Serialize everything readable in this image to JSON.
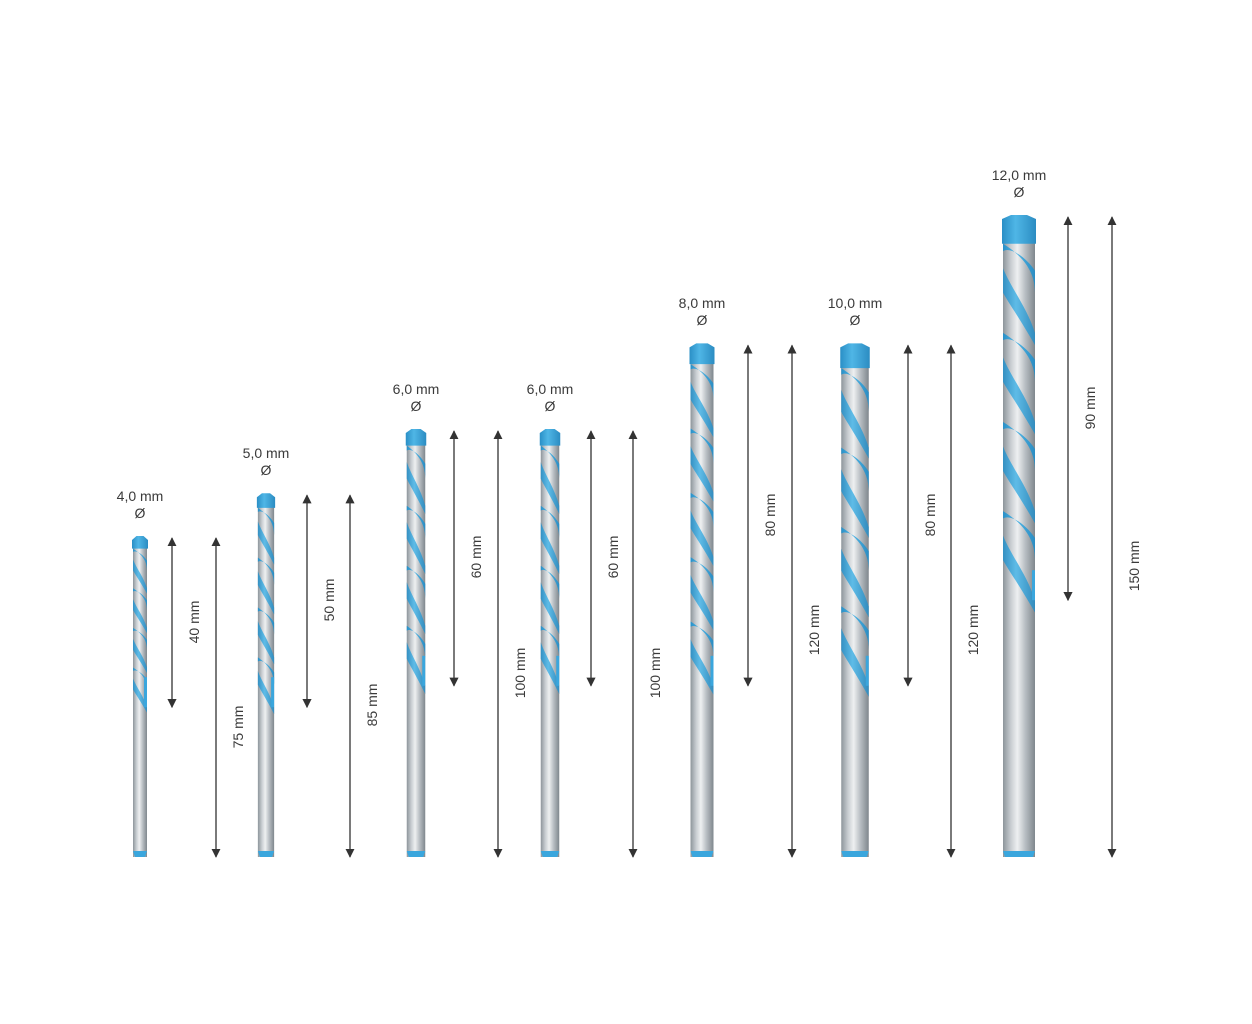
{
  "colors": {
    "flute_blue": "#3aa6dd",
    "shank_grey": "#c8cdd1",
    "arrow": "#333333",
    "background": "#ffffff"
  },
  "bits": [
    {
      "diameter_label": "4,0 mm",
      "diameter_symbol": "Ø",
      "working_length_label": "40 mm",
      "total_length_label": "75 mm",
      "diameter_mm": 4.0,
      "working_length_mm": 40,
      "total_length_mm": 75
    },
    {
      "diameter_label": "5,0 mm",
      "diameter_symbol": "Ø",
      "working_length_label": "50 mm",
      "total_length_label": "85 mm",
      "diameter_mm": 5.0,
      "working_length_mm": 50,
      "total_length_mm": 85
    },
    {
      "diameter_label": "6,0 mm",
      "diameter_symbol": "Ø",
      "working_length_label": "60 mm",
      "total_length_label": "100 mm",
      "diameter_mm": 6.0,
      "working_length_mm": 60,
      "total_length_mm": 100
    },
    {
      "diameter_label": "6,0 mm",
      "diameter_symbol": "Ø",
      "working_length_label": "60 mm",
      "total_length_label": "100 mm",
      "diameter_mm": 6.0,
      "working_length_mm": 60,
      "total_length_mm": 100
    },
    {
      "diameter_label": "8,0 mm",
      "diameter_symbol": "Ø",
      "working_length_label": "80 mm",
      "total_length_label": "120 mm",
      "diameter_mm": 8.0,
      "working_length_mm": 80,
      "total_length_mm": 120
    },
    {
      "diameter_label": "10,0 mm",
      "diameter_symbol": "Ø",
      "working_length_label": "80 mm",
      "total_length_label": "120 mm",
      "diameter_mm": 10.0,
      "working_length_mm": 80,
      "total_length_mm": 120
    },
    {
      "diameter_label": "12,0 mm",
      "diameter_symbol": "Ø",
      "working_length_label": "90 mm",
      "total_length_label": "150 mm",
      "diameter_mm": 12.0,
      "working_length_mm": 90,
      "total_length_mm": 150
    }
  ]
}
